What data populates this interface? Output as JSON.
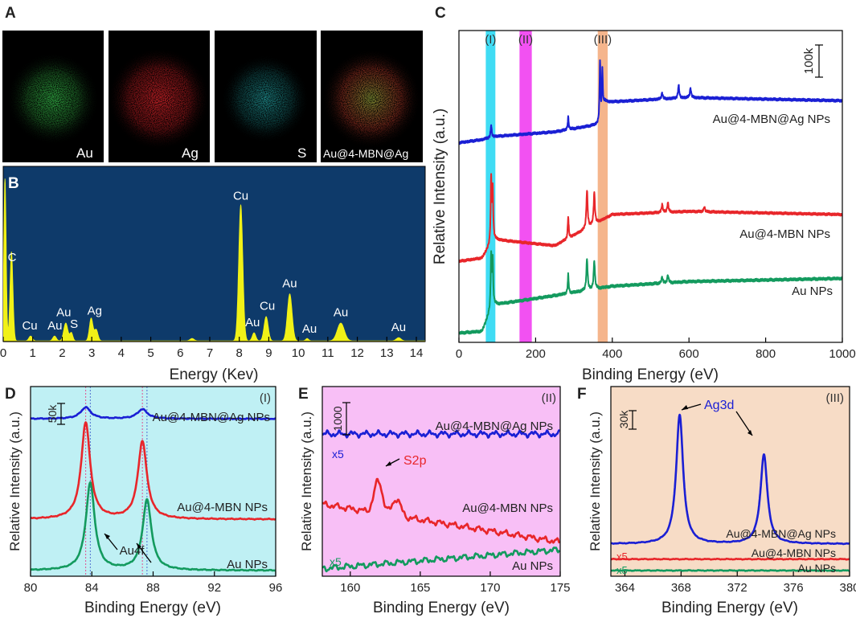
{
  "colors": {
    "blue": "#1a1fd4",
    "red": "#e8262a",
    "green": "#139a5e",
    "cyan": "#1fd6f2",
    "magenta": "#f032f0",
    "orange": "#f3a878",
    "eds_bg": "#0e3a6a",
    "eds_peak": "#f1f117",
    "bg_I": "#bff0f4",
    "bg_II": "#f8bff6",
    "bg_III": "#f7dcc6",
    "map_au": "#37c24c",
    "map_ag": "#e3262c",
    "map_s": "#2bbfc0"
  },
  "panels": {
    "A": {
      "label": "A",
      "maps": [
        {
          "label": "Au",
          "element": "Au"
        },
        {
          "label": "Ag",
          "element": "Ag"
        },
        {
          "label": "S",
          "element": "S"
        },
        {
          "label": "Au@4-MBN@Ag",
          "element": "overlay"
        }
      ]
    },
    "B": {
      "label": "B"
    },
    "C": {
      "label": "C"
    },
    "D": {
      "label": "D"
    },
    "E": {
      "label": "E"
    },
    "F": {
      "label": "F"
    }
  },
  "chart_data": [
    {
      "id": "B",
      "type": "area",
      "title": "",
      "xlabel": "Energy (Kev)",
      "ylabel": "",
      "xlim": [
        0,
        14.3
      ],
      "ylim": [
        0,
        100
      ],
      "xticks": [
        "0",
        "1",
        "2",
        "3",
        "4",
        "5",
        "6",
        "7",
        "8",
        "9",
        "10",
        "11",
        "12",
        "13",
        "14"
      ],
      "peaks": [
        {
          "x": 0.06,
          "height": 100,
          "width": 0.04
        },
        {
          "x": 0.28,
          "height": 55,
          "width": 0.05
        },
        {
          "x": 0.93,
          "height": 3,
          "width": 0.06
        },
        {
          "x": 1.74,
          "height": 3,
          "width": 0.06
        },
        {
          "x": 2.12,
          "height": 11,
          "width": 0.07
        },
        {
          "x": 2.31,
          "height": 5,
          "width": 0.05
        },
        {
          "x": 2.98,
          "height": 14,
          "width": 0.06
        },
        {
          "x": 3.15,
          "height": 7,
          "width": 0.06
        },
        {
          "x": 6.4,
          "height": 1.5,
          "width": 0.07
        },
        {
          "x": 8.05,
          "height": 84,
          "width": 0.07
        },
        {
          "x": 8.5,
          "height": 5,
          "width": 0.06
        },
        {
          "x": 8.91,
          "height": 15,
          "width": 0.07
        },
        {
          "x": 9.71,
          "height": 29,
          "width": 0.08
        },
        {
          "x": 10.3,
          "height": 1.5,
          "width": 0.05
        },
        {
          "x": 11.44,
          "height": 11,
          "width": 0.12
        },
        {
          "x": 13.4,
          "height": 2,
          "width": 0.08
        }
      ],
      "annotations": [
        {
          "text": "C",
          "x": 0.3,
          "y": 48
        },
        {
          "text": "Cu",
          "x": 0.9,
          "y": 6
        },
        {
          "text": "Au",
          "x": 1.75,
          "y": 6
        },
        {
          "text": "Au",
          "x": 2.05,
          "y": 14
        },
        {
          "text": "S",
          "x": 2.4,
          "y": 7
        },
        {
          "text": "Ag",
          "x": 3.1,
          "y": 15
        },
        {
          "text": "Cu",
          "x": 8.05,
          "y": 86
        },
        {
          "text": "Au",
          "x": 8.45,
          "y": 8
        },
        {
          "text": "Cu",
          "x": 8.95,
          "y": 18
        },
        {
          "text": "Au",
          "x": 9.71,
          "y": 32
        },
        {
          "text": "Au",
          "x": 10.38,
          "y": 4
        },
        {
          "text": "Au",
          "x": 11.44,
          "y": 14
        },
        {
          "text": "Au",
          "x": 13.4,
          "y": 5
        }
      ]
    },
    {
      "id": "C",
      "type": "line",
      "title": "",
      "xlabel": "Binding Energy (eV)",
      "ylabel": "Relative Intensity (a.u.)",
      "xlim": [
        0,
        1000
      ],
      "ylim": [
        0,
        100
      ],
      "xticks": [
        "0",
        "200",
        "400",
        "600",
        "800",
        "1000"
      ],
      "scale_bar": "100k",
      "bands": [
        {
          "label": "(I)",
          "range": [
            70,
            95
          ],
          "color": "#1fd6f2"
        },
        {
          "label": "(II)",
          "range": [
            158,
            190
          ],
          "color": "#f032f0"
        },
        {
          "label": "(III)",
          "range": [
            362,
            388
          ],
          "color": "#f3a878"
        }
      ],
      "series": [
        {
          "name": "Au NPs",
          "color": "#139a5e",
          "baseline": [
            [
              0,
              3
            ],
            [
              60,
              3.5
            ],
            [
              88,
              12
            ],
            [
              250,
              15
            ],
            [
              400,
              18
            ],
            [
              600,
              19.5
            ],
            [
              1000,
              20.5
            ]
          ],
          "peaks": [
            {
              "x": 84,
              "height": 17,
              "width": 1.5
            },
            {
              "x": 88,
              "height": 14,
              "width": 1.5
            },
            {
              "x": 285,
              "height": 6,
              "width": 1.5
            },
            {
              "x": 334,
              "height": 10,
              "width": 2
            },
            {
              "x": 353,
              "height": 9,
              "width": 2
            },
            {
              "x": 530,
              "height": 2,
              "width": 2
            },
            {
              "x": 545,
              "height": 2.5,
              "width": 2
            }
          ]
        },
        {
          "name": "Au@4-MBN NPs",
          "color": "#e8262a",
          "baseline": [
            [
              0,
              26
            ],
            [
              60,
              27
            ],
            [
              90,
              33
            ],
            [
              250,
              31
            ],
            [
              400,
              41
            ],
            [
              600,
              42
            ],
            [
              1000,
              41
            ]
          ],
          "peaks": [
            {
              "x": 84,
              "height": 20,
              "width": 1.5
            },
            {
              "x": 88,
              "height": 16,
              "width": 1.5
            },
            {
              "x": 285,
              "height": 7,
              "width": 1.5
            },
            {
              "x": 334,
              "height": 12,
              "width": 2
            },
            {
              "x": 353,
              "height": 10,
              "width": 2
            },
            {
              "x": 530,
              "height": 2.5,
              "width": 2
            },
            {
              "x": 545,
              "height": 3,
              "width": 2
            },
            {
              "x": 640,
              "height": 1.5,
              "width": 2
            }
          ]
        },
        {
          "name": "Au@4-MBN@Ag NPs",
          "color": "#1a1fd4",
          "baseline": [
            [
              0,
              64
            ],
            [
              60,
              65
            ],
            [
              90,
              66
            ],
            [
              250,
              67.5
            ],
            [
              370,
              70
            ],
            [
              380,
              77
            ],
            [
              600,
              78.5
            ],
            [
              1000,
              77.5
            ]
          ],
          "peaks": [
            {
              "x": 84,
              "height": 4,
              "width": 1.5
            },
            {
              "x": 285,
              "height": 4,
              "width": 1.5
            },
            {
              "x": 368,
              "height": 20,
              "width": 1.5
            },
            {
              "x": 374,
              "height": 14,
              "width": 1.5
            },
            {
              "x": 530,
              "height": 2,
              "width": 2
            },
            {
              "x": 573,
              "height": 4,
              "width": 2
            },
            {
              "x": 604,
              "height": 3,
              "width": 2
            }
          ]
        }
      ]
    },
    {
      "id": "D",
      "type": "line",
      "title": "",
      "xlabel": "Binding Energy (eV)",
      "ylabel": "Relative Intensity (a.u.)",
      "xlim": [
        80,
        96
      ],
      "ylim": [
        0,
        100
      ],
      "xticks": [
        "80",
        "84",
        "88",
        "92",
        "96"
      ],
      "scale_bar": "50k",
      "region_label": "(I)",
      "peak_label": "Au4f",
      "series": [
        {
          "name": "Au NPs",
          "color": "#139a5e",
          "offset": 3,
          "peaks": [
            {
              "x": 83.9,
              "height": 46,
              "width": 0.35
            },
            {
              "x": 87.6,
              "height": 37,
              "width": 0.35
            }
          ]
        },
        {
          "name": "Au@4-MBN NPs",
          "color": "#e8262a",
          "offset": 30,
          "peaks": [
            {
              "x": 83.6,
              "height": 51,
              "width": 0.35
            },
            {
              "x": 87.3,
              "height": 41,
              "width": 0.35
            }
          ]
        },
        {
          "name": "Au@4-MBN@Ag NPs",
          "color": "#1a1fd4",
          "offset": 83,
          "peaks": [
            {
              "x": 83.6,
              "height": 6,
              "width": 0.4
            },
            {
              "x": 87.3,
              "height": 5,
              "width": 0.4
            }
          ]
        }
      ]
    },
    {
      "id": "E",
      "type": "line",
      "title": "",
      "xlabel": "Binding Energy (eV)",
      "ylabel": "Relative Intensity (a.u.)",
      "xlim": [
        158,
        175
      ],
      "ylim": [
        0,
        100
      ],
      "xticks": [
        "160",
        "165",
        "170",
        "175"
      ],
      "scale_bar": "1000",
      "region_label": "(II)",
      "peak_label": "S2p",
      "series": [
        {
          "name": "Au NPs",
          "color": "#139a5e",
          "multiplier": "x5",
          "start": 4,
          "end": 14,
          "peaks": []
        },
        {
          "name": "Au@4-MBN NPs",
          "color": "#e8262a",
          "start": 38,
          "end": 18,
          "peaks": [
            {
              "x": 162.0,
              "height": 17,
              "width": 0.3
            },
            {
              "x": 163.3,
              "height": 9,
              "width": 0.3
            }
          ]
        },
        {
          "name": "Au@4-MBN@Ag NPs",
          "color": "#1a1fd4",
          "multiplier": "x5",
          "start": 75,
          "end": 75,
          "peaks": []
        }
      ]
    },
    {
      "id": "F",
      "type": "line",
      "title": "",
      "xlabel": "Binding Energy (eV)",
      "ylabel": "Relative Intensity (a.u.)",
      "xlim": [
        363,
        380
      ],
      "ylim": [
        0,
        100
      ],
      "xticks": [
        "364",
        "368",
        "372",
        "376",
        "380"
      ],
      "scale_bar": "30k",
      "region_label": "(III)",
      "peak_label": "Ag3d",
      "series": [
        {
          "name": "Au NPs",
          "color": "#139a5e",
          "multiplier": "x5",
          "offset": 3,
          "peaks": []
        },
        {
          "name": "Au@4-MBN NPs",
          "color": "#e8262a",
          "multiplier": "x5",
          "offset": 9,
          "peaks": []
        },
        {
          "name": "Au@4-MBN@Ag NPs",
          "color": "#1a1fd4",
          "offset": 17,
          "peaks": [
            {
              "x": 367.9,
              "height": 68,
              "width": 0.3
            },
            {
              "x": 373.9,
              "height": 47,
              "width": 0.3
            }
          ]
        }
      ]
    }
  ]
}
